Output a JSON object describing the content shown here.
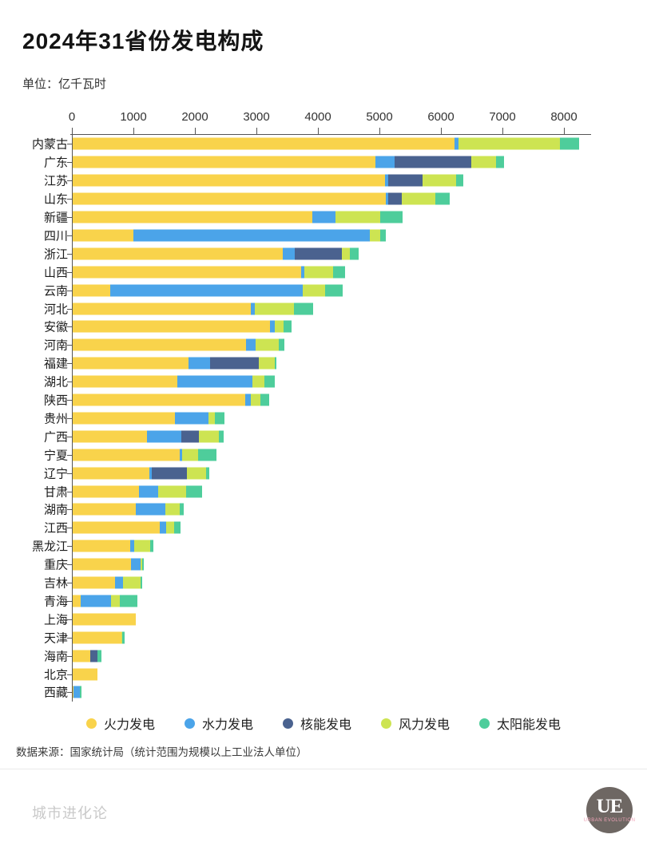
{
  "header": {
    "title": "2024年31省份发电构成",
    "unit": "单位：亿千瓦时"
  },
  "chart_data": {
    "type": "bar",
    "orientation": "horizontal-stacked",
    "title": "2024年31省份发电构成",
    "unit": "亿千瓦时",
    "xlim": [
      0,
      8450
    ],
    "x_ticks": [
      0,
      1000,
      2000,
      3000,
      4000,
      5000,
      6000,
      7000,
      8000
    ],
    "grid": false,
    "legend_position": "bottom",
    "series": [
      {
        "name": "火力发电",
        "color": "#F9D34B"
      },
      {
        "name": "水力发电",
        "color": "#4BA4E9"
      },
      {
        "name": "核能发电",
        "color": "#4A628F"
      },
      {
        "name": "风力发电",
        "color": "#CDE452"
      },
      {
        "name": "太阳能发电",
        "color": "#4ECD9B"
      }
    ],
    "rows": [
      {
        "label": "内蒙古",
        "values": [
          6210,
          65,
          0,
          1650,
          310
        ]
      },
      {
        "label": "广东",
        "values": [
          4920,
          315,
          1245,
          405,
          130
        ]
      },
      {
        "label": "江苏",
        "values": [
          5080,
          55,
          555,
          545,
          120
        ]
      },
      {
        "label": "山东",
        "values": [
          5085,
          50,
          215,
          540,
          240
        ]
      },
      {
        "label": "新疆",
        "values": [
          3890,
          380,
          0,
          725,
          370
        ]
      },
      {
        "label": "四川",
        "values": [
          990,
          3840,
          0,
          175,
          85
        ]
      },
      {
        "label": "浙江",
        "values": [
          3410,
          205,
          760,
          130,
          150
        ]
      },
      {
        "label": "山西",
        "values": [
          3715,
          45,
          0,
          475,
          190
        ]
      },
      {
        "label": "云南",
        "values": [
          605,
          3130,
          0,
          370,
          290
        ]
      },
      {
        "label": "河北",
        "values": [
          2890,
          65,
          0,
          645,
          310
        ]
      },
      {
        "label": "安徽",
        "values": [
          3205,
          85,
          0,
          140,
          130
        ]
      },
      {
        "label": "河南",
        "values": [
          2820,
          155,
          0,
          375,
          90
        ]
      },
      {
        "label": "福建",
        "values": [
          1885,
          345,
          800,
          260,
          20
        ]
      },
      {
        "label": "湖北",
        "values": [
          1695,
          1225,
          0,
          195,
          165
        ]
      },
      {
        "label": "陕西",
        "values": [
          2805,
          85,
          0,
          160,
          145
        ]
      },
      {
        "label": "贵州",
        "values": [
          1665,
          540,
          0,
          110,
          150
        ]
      },
      {
        "label": "广西",
        "values": [
          1205,
          560,
          290,
          325,
          80
        ]
      },
      {
        "label": "宁夏",
        "values": [
          1740,
          40,
          0,
          255,
          305
        ]
      },
      {
        "label": "辽宁",
        "values": [
          1245,
          45,
          570,
          305,
          50
        ]
      },
      {
        "label": "甘肃",
        "values": [
          1080,
          310,
          0,
          460,
          260
        ]
      },
      {
        "label": "湖南",
        "values": [
          1030,
          475,
          0,
          235,
          70
        ]
      },
      {
        "label": "江西",
        "values": [
          1420,
          105,
          0,
          130,
          100
        ]
      },
      {
        "label": "黑龙江",
        "values": [
          940,
          55,
          0,
          260,
          55
        ]
      },
      {
        "label": "重庆",
        "values": [
          950,
          160,
          0,
          25,
          20
        ]
      },
      {
        "label": "吉林",
        "values": [
          690,
          125,
          0,
          285,
          35
        ]
      },
      {
        "label": "青海",
        "values": [
          130,
          495,
          0,
          140,
          285
        ]
      },
      {
        "label": "上海",
        "values": [
          1030,
          0,
          0,
          0,
          0
        ]
      },
      {
        "label": "天津",
        "values": [
          790,
          0,
          0,
          20,
          40
        ]
      },
      {
        "label": "海南",
        "values": [
          290,
          0,
          115,
          0,
          60
        ]
      },
      {
        "label": "北京",
        "values": [
          400,
          0,
          0,
          0,
          0
        ]
      },
      {
        "label": "西藏",
        "values": [
          10,
          110,
          0,
          0,
          20
        ]
      }
    ]
  },
  "footer": {
    "source": "数据来源：国家统计局（统计范围为规模以上工业法人单位）",
    "brand": "城市进化论",
    "logo_text": "UE",
    "logo_subtext": "URBAN EVOLUTION"
  }
}
